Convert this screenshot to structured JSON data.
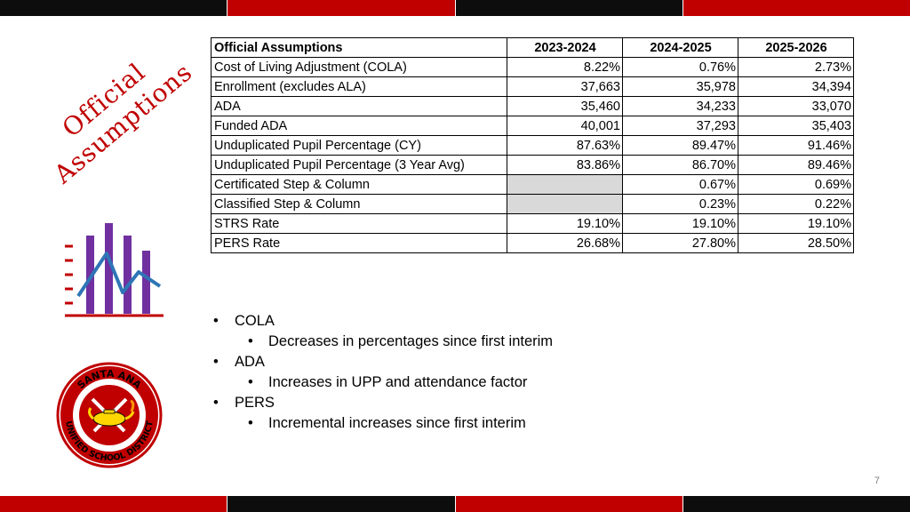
{
  "side_title": "Official Assumptions",
  "table": {
    "headers": [
      "Official Assumptions",
      "2023-2024",
      "2024-2025",
      "2025-2026"
    ],
    "rows": [
      {
        "label": "Cost of Living Adjustment (COLA)",
        "values": [
          "8.22%",
          "0.76%",
          "2.73%"
        ]
      },
      {
        "label": "Enrollment (excludes ALA)",
        "values": [
          "37,663",
          "35,978",
          "34,394"
        ]
      },
      {
        "label": "ADA",
        "values": [
          "35,460",
          "34,233",
          "33,070"
        ]
      },
      {
        "label": "Funded ADA",
        "values": [
          "40,001",
          "37,293",
          "35,403"
        ]
      },
      {
        "label": "Unduplicated Pupil Percentage (CY)",
        "values": [
          "87.63%",
          "89.47%",
          "91.46%"
        ]
      },
      {
        "label": "Unduplicated Pupil Percentage (3 Year Avg)",
        "values": [
          "83.86%",
          "86.70%",
          "89.46%"
        ]
      },
      {
        "label": "Certificated Step & Column",
        "values": [
          "",
          "0.67%",
          "0.69%"
        ]
      },
      {
        "label": "Classified Step & Column",
        "values": [
          "",
          "0.23%",
          "0.22%"
        ]
      },
      {
        "label": "STRS Rate",
        "values": [
          "19.10%",
          "19.10%",
          "19.10%"
        ]
      },
      {
        "label": "PERS Rate",
        "values": [
          "26.68%",
          "27.80%",
          "28.50%"
        ]
      }
    ]
  },
  "notes": [
    {
      "text": "COLA",
      "sub": "Decreases in percentages since first interim"
    },
    {
      "text": "ADA",
      "sub": "Increases in UPP and attendance factor"
    },
    {
      "text": "PERS",
      "sub": "Incremental increases since first interim"
    }
  ],
  "bullet_char": "•",
  "seal": {
    "top_text": "SANTA ANA",
    "bottom_text": "UNIFIED SCHOOL DISTRICT"
  },
  "icons": {
    "chart": "bar-chart-trend-icon",
    "seal": "district-seal-logo"
  },
  "colors": {
    "accent_red": "#c00000",
    "bar_dark": "#0d0d0d",
    "chart_purple": "#7030a0",
    "chart_blue": "#2e75b6",
    "blank_cell": "#d9d9d9"
  },
  "page_number": "7"
}
